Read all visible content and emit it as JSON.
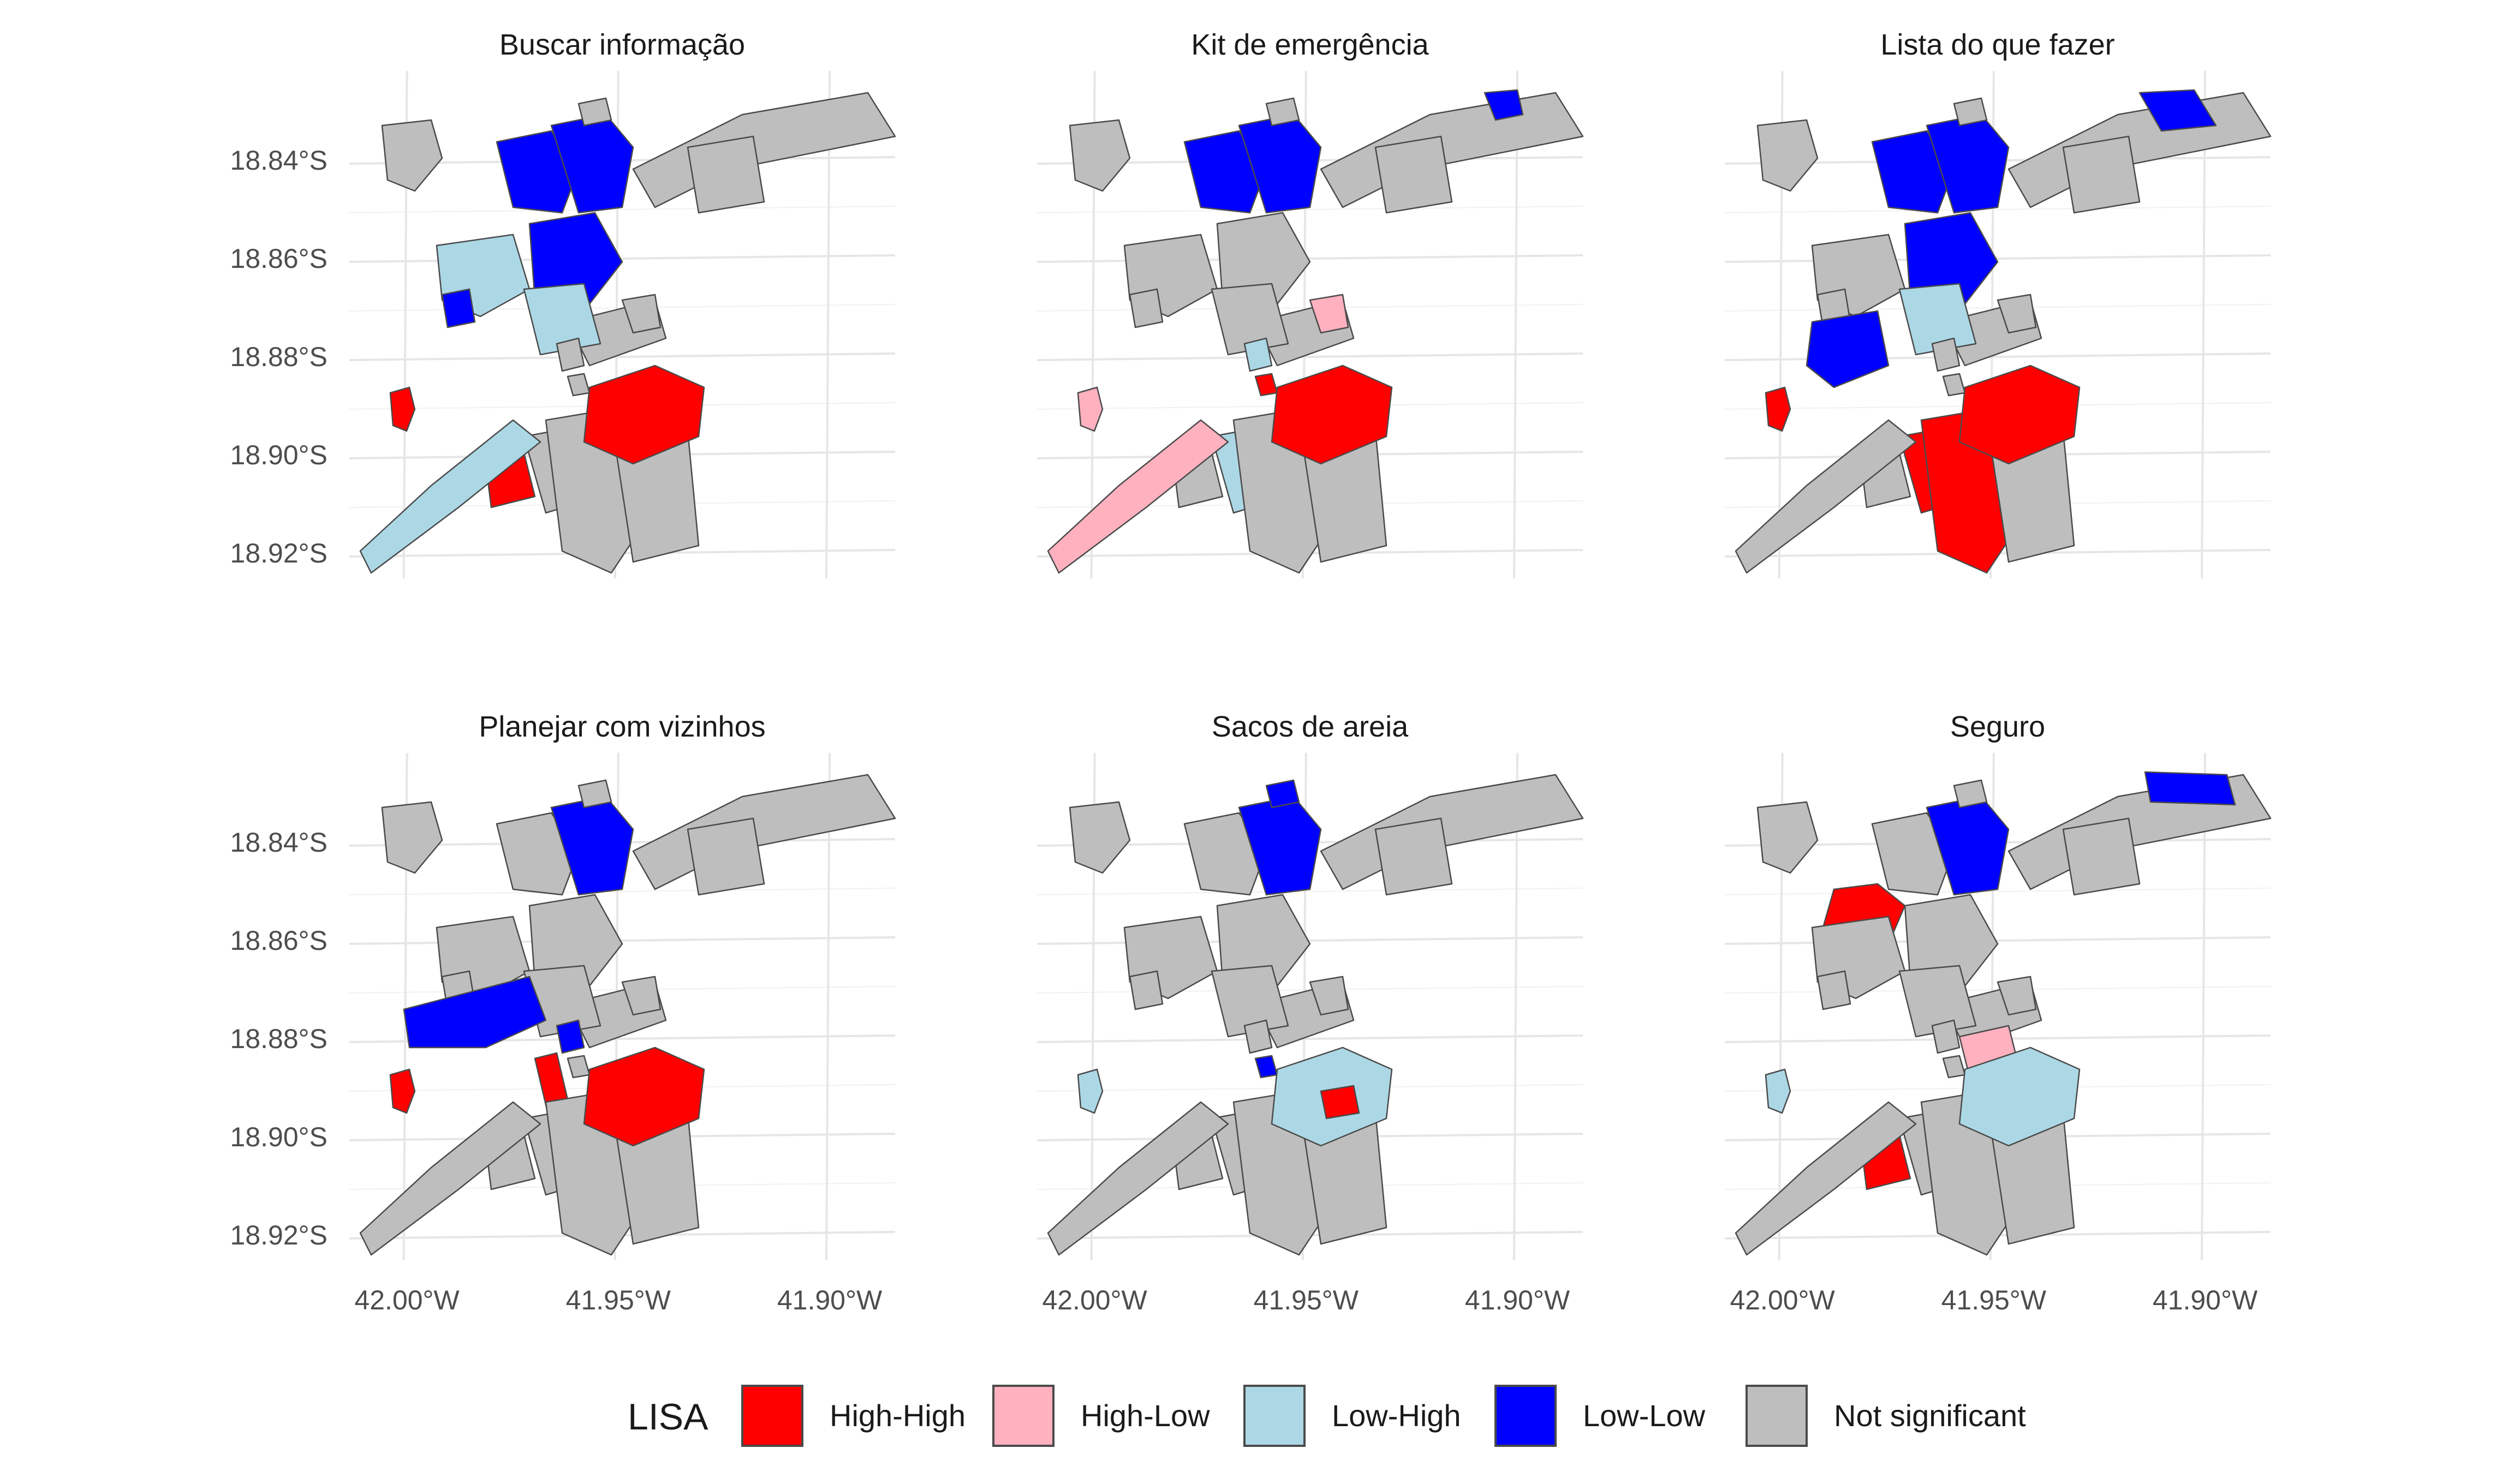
{
  "panels": [
    {
      "title": "Buscar informação",
      "highlights": [
        {
          "region": "north-block-a",
          "cls": "Low-Low"
        },
        {
          "region": "north-block-b",
          "cls": "Low-Low"
        },
        {
          "region": "central-block",
          "cls": "Low-Low"
        },
        {
          "region": "west-small",
          "cls": "Low-Low"
        },
        {
          "region": "mid-west",
          "cls": "Low-High"
        },
        {
          "region": "central-south",
          "cls": "Low-High"
        },
        {
          "region": "southwest-strip",
          "cls": "Low-High"
        },
        {
          "region": "east-river",
          "cls": "High-High"
        },
        {
          "region": "far-west-islet",
          "cls": "High-High"
        },
        {
          "region": "south-small",
          "cls": "High-High"
        }
      ]
    },
    {
      "title": "Kit de emergência",
      "highlights": [
        {
          "region": "north-block-a",
          "cls": "Low-Low"
        },
        {
          "region": "north-block-b",
          "cls": "Low-Low"
        },
        {
          "region": "northeast-tip",
          "cls": "Low-Low"
        },
        {
          "region": "central-small",
          "cls": "High-Low"
        },
        {
          "region": "southwest-strip",
          "cls": "High-Low"
        },
        {
          "region": "far-west-islet",
          "cls": "High-Low"
        },
        {
          "region": "center-tiny-a",
          "cls": "Low-High"
        },
        {
          "region": "south-mid",
          "cls": "Low-High"
        },
        {
          "region": "east-river",
          "cls": "High-High"
        },
        {
          "region": "center-tiny-b",
          "cls": "High-High"
        }
      ]
    },
    {
      "title": "Lista do que fazer",
      "highlights": [
        {
          "region": "north-block-a",
          "cls": "Low-Low"
        },
        {
          "region": "north-block-b",
          "cls": "Low-Low"
        },
        {
          "region": "central-block",
          "cls": "Low-Low"
        },
        {
          "region": "west-mid-block",
          "cls": "Low-Low"
        },
        {
          "region": "northeast-east",
          "cls": "Low-Low"
        },
        {
          "region": "central-south",
          "cls": "Low-High"
        },
        {
          "region": "east-river",
          "cls": "High-High"
        },
        {
          "region": "south-long",
          "cls": "High-High"
        },
        {
          "region": "south-mid",
          "cls": "High-High"
        },
        {
          "region": "far-west-islet",
          "cls": "High-High"
        }
      ]
    },
    {
      "title": "Planejar com vizinhos",
      "highlights": [
        {
          "region": "north-block-b",
          "cls": "Low-Low"
        },
        {
          "region": "west-arm",
          "cls": "Low-Low"
        },
        {
          "region": "center-tiny-a",
          "cls": "Low-Low"
        },
        {
          "region": "east-river",
          "cls": "High-High"
        },
        {
          "region": "center-strip",
          "cls": "High-High"
        },
        {
          "region": "far-west-islet",
          "cls": "High-High"
        }
      ]
    },
    {
      "title": "Sacos de areia",
      "highlights": [
        {
          "region": "north-block-b",
          "cls": "Low-Low"
        },
        {
          "region": "north-top",
          "cls": "Low-Low"
        },
        {
          "region": "center-tiny-b",
          "cls": "Low-Low"
        },
        {
          "region": "east-river",
          "cls": "Low-High"
        },
        {
          "region": "far-west-islet",
          "cls": "Low-High"
        },
        {
          "region": "east-river-core",
          "cls": "High-High"
        }
      ]
    },
    {
      "title": "Seguro",
      "highlights": [
        {
          "region": "north-block-b",
          "cls": "Low-Low"
        },
        {
          "region": "northeast-tip-wide",
          "cls": "Low-Low"
        },
        {
          "region": "west-blob",
          "cls": "High-High"
        },
        {
          "region": "south-small",
          "cls": "High-High"
        },
        {
          "region": "central-wedge",
          "cls": "High-Low"
        },
        {
          "region": "east-river",
          "cls": "Low-High"
        },
        {
          "region": "far-west-islet",
          "cls": "Low-High"
        }
      ]
    }
  ],
  "axes": {
    "y_ticks": [
      "18.84°S",
      "18.86°S",
      "18.88°S",
      "18.90°S",
      "18.92°S"
    ],
    "x_ticks": [
      "42.00°W",
      "41.95°W",
      "41.90°W"
    ]
  },
  "legend": {
    "title": "LISA",
    "items": [
      {
        "label": "High-High",
        "color": "#ff0000"
      },
      {
        "label": "High-Low",
        "color": "#ffb1bf"
      },
      {
        "label": "Low-High",
        "color": "#acd8e6"
      },
      {
        "label": "Low-Low",
        "color": "#0000ff"
      },
      {
        "label": "Not significant",
        "color": "#bebebe"
      }
    ]
  }
}
